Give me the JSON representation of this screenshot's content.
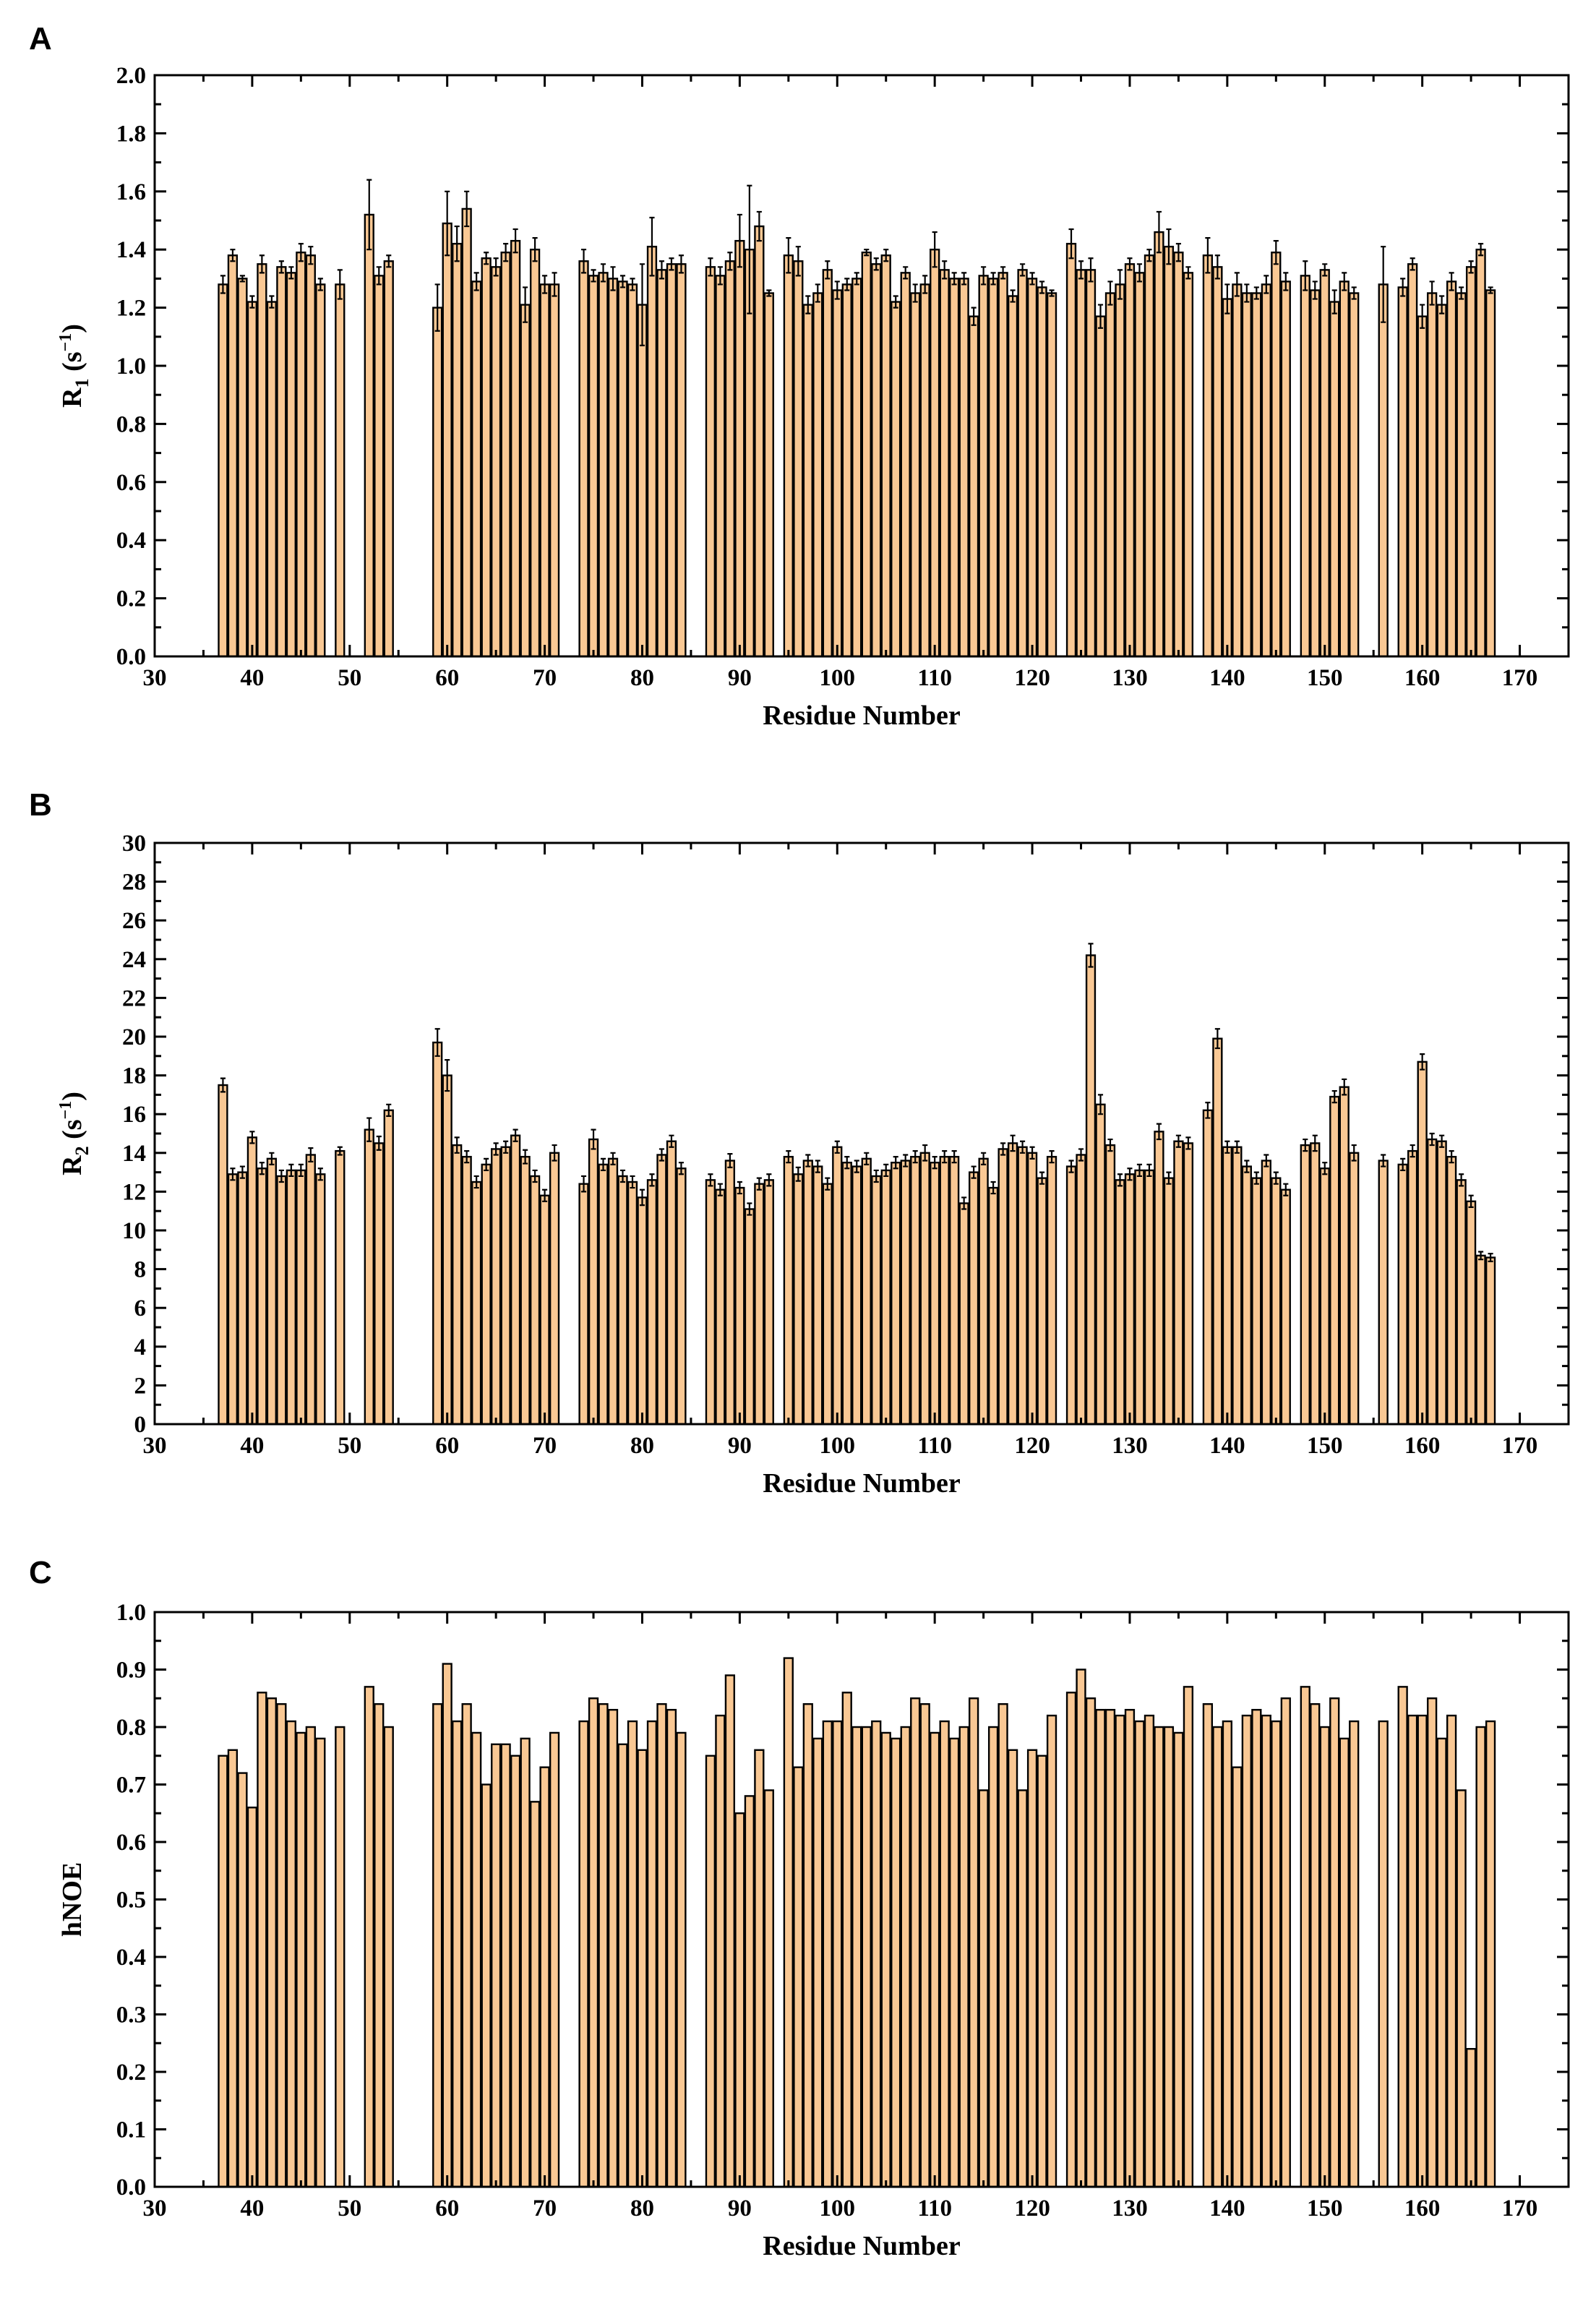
{
  "figure": {
    "panels": [
      "A",
      "B",
      "C"
    ]
  },
  "chart_data": [
    {
      "type": "bar",
      "panel_label": "A",
      "title": "",
      "xlabel": "Residue Number",
      "ylabel": "R1 (s⁻¹)",
      "ylabel_main": "R",
      "ylabel_sub": "1",
      "ylabel_tail": " (s",
      "ylabel_sup": "−1",
      "ylabel_close": ")",
      "xlim": [
        30,
        175
      ],
      "ylim": [
        0,
        2.0
      ],
      "xticks": [
        30,
        40,
        50,
        60,
        70,
        80,
        90,
        100,
        110,
        120,
        130,
        140,
        150,
        160,
        170
      ],
      "yticks": [
        "0.0",
        "0.2",
        "0.4",
        "0.6",
        "0.8",
        "1.0",
        "1.2",
        "1.4",
        "1.6",
        "1.8",
        "2.0"
      ],
      "residues": [
        37,
        38,
        39,
        40,
        41,
        42,
        43,
        44,
        45,
        46,
        47,
        49,
        52,
        53,
        54,
        59,
        60,
        61,
        62,
        63,
        64,
        65,
        66,
        67,
        68,
        69,
        70,
        71,
        74,
        75,
        76,
        77,
        78,
        79,
        80,
        81,
        82,
        83,
        84,
        87,
        88,
        89,
        90,
        91,
        92,
        93,
        95,
        96,
        97,
        98,
        99,
        100,
        101,
        102,
        103,
        104,
        105,
        106,
        107,
        108,
        109,
        110,
        111,
        112,
        113,
        114,
        115,
        116,
        117,
        118,
        119,
        120,
        121,
        122,
        124,
        125,
        126,
        127,
        128,
        129,
        130,
        131,
        132,
        133,
        134,
        135,
        136,
        138,
        139,
        140,
        141,
        142,
        143,
        144,
        145,
        146,
        148,
        149,
        150,
        151,
        152,
        153,
        156,
        158,
        159,
        160,
        161,
        162,
        163,
        164,
        165,
        166,
        167
      ],
      "values": [
        1.28,
        1.38,
        1.3,
        1.22,
        1.35,
        1.22,
        1.34,
        1.32,
        1.39,
        1.38,
        1.28,
        1.28,
        1.52,
        1.31,
        1.36,
        1.2,
        1.49,
        1.42,
        1.54,
        1.29,
        1.37,
        1.34,
        1.39,
        1.43,
        1.21,
        1.4,
        1.28,
        1.28,
        1.36,
        1.31,
        1.32,
        1.3,
        1.29,
        1.28,
        1.21,
        1.41,
        1.33,
        1.35,
        1.35,
        1.34,
        1.31,
        1.36,
        1.43,
        1.4,
        1.48,
        1.25,
        1.38,
        1.36,
        1.21,
        1.25,
        1.33,
        1.26,
        1.28,
        1.3,
        1.39,
        1.35,
        1.38,
        1.22,
        1.32,
        1.25,
        1.28,
        1.4,
        1.33,
        1.3,
        1.3,
        1.17,
        1.31,
        1.3,
        1.32,
        1.24,
        1.33,
        1.3,
        1.27,
        1.25,
        1.42,
        1.33,
        1.33,
        1.17,
        1.25,
        1.28,
        1.35,
        1.32,
        1.38,
        1.46,
        1.41,
        1.39,
        1.32,
        1.38,
        1.34,
        1.23,
        1.28,
        1.25,
        1.25,
        1.28,
        1.39,
        1.29,
        1.31,
        1.26,
        1.33,
        1.22,
        1.29,
        1.25,
        1.28,
        1.27,
        1.35,
        1.17,
        1.25,
        1.21,
        1.29,
        1.25,
        1.34,
        1.4,
        1.26
      ],
      "errors": [
        0.03,
        0.02,
        0.01,
        0.02,
        0.03,
        0.02,
        0.02,
        0.02,
        0.03,
        0.03,
        0.02,
        0.05,
        0.12,
        0.03,
        0.02,
        0.08,
        0.11,
        0.06,
        0.06,
        0.03,
        0.02,
        0.03,
        0.03,
        0.04,
        0.06,
        0.04,
        0.03,
        0.04,
        0.04,
        0.02,
        0.03,
        0.04,
        0.02,
        0.02,
        0.14,
        0.1,
        0.03,
        0.02,
        0.03,
        0.03,
        0.03,
        0.03,
        0.09,
        0.22,
        0.05,
        0.01,
        0.06,
        0.05,
        0.03,
        0.03,
        0.03,
        0.03,
        0.02,
        0.02,
        0.01,
        0.02,
        0.02,
        0.02,
        0.02,
        0.03,
        0.03,
        0.06,
        0.03,
        0.02,
        0.02,
        0.03,
        0.03,
        0.02,
        0.02,
        0.02,
        0.02,
        0.02,
        0.02,
        0.01,
        0.05,
        0.03,
        0.04,
        0.04,
        0.04,
        0.05,
        0.02,
        0.03,
        0.02,
        0.07,
        0.06,
        0.03,
        0.02,
        0.06,
        0.04,
        0.05,
        0.04,
        0.03,
        0.02,
        0.03,
        0.04,
        0.03,
        0.05,
        0.03,
        0.02,
        0.04,
        0.03,
        0.02,
        0.13,
        0.03,
        0.02,
        0.04,
        0.04,
        0.03,
        0.03,
        0.02,
        0.02,
        0.02,
        0.01
      ],
      "bar_color": "#f9c894",
      "edge_color": "#000000"
    },
    {
      "type": "bar",
      "panel_label": "B",
      "title": "",
      "xlabel": "Residue Number",
      "ylabel": "R2 (s⁻¹)",
      "ylabel_main": "R",
      "ylabel_sub": "2",
      "ylabel_tail": " (s",
      "ylabel_sup": "−1",
      "ylabel_close": ")",
      "xlim": [
        30,
        175
      ],
      "ylim": [
        0,
        30
      ],
      "xticks": [
        30,
        40,
        50,
        60,
        70,
        80,
        90,
        100,
        110,
        120,
        130,
        140,
        150,
        160,
        170
      ],
      "yticks": [
        "0",
        "2",
        "4",
        "6",
        "8",
        "10",
        "12",
        "14",
        "16",
        "18",
        "20",
        "22",
        "24",
        "26",
        "28",
        "30"
      ],
      "residues": [
        37,
        38,
        39,
        40,
        41,
        42,
        43,
        44,
        45,
        46,
        47,
        49,
        52,
        53,
        54,
        59,
        60,
        61,
        62,
        63,
        64,
        65,
        66,
        67,
        68,
        69,
        70,
        71,
        74,
        75,
        76,
        77,
        78,
        79,
        80,
        81,
        82,
        83,
        84,
        87,
        88,
        89,
        90,
        91,
        92,
        93,
        95,
        96,
        97,
        98,
        99,
        100,
        101,
        102,
        103,
        104,
        105,
        106,
        107,
        108,
        109,
        110,
        111,
        112,
        113,
        114,
        115,
        116,
        117,
        118,
        119,
        120,
        121,
        122,
        124,
        125,
        126,
        127,
        128,
        129,
        130,
        131,
        132,
        133,
        134,
        135,
        136,
        138,
        139,
        140,
        141,
        142,
        143,
        144,
        145,
        146,
        148,
        149,
        150,
        151,
        152,
        153,
        156,
        158,
        159,
        160,
        161,
        162,
        163,
        164,
        165,
        166,
        167
      ],
      "values": [
        17.5,
        12.9,
        13.0,
        14.8,
        13.2,
        13.7,
        12.8,
        13.1,
        13.1,
        13.9,
        12.9,
        14.1,
        15.2,
        14.5,
        16.2,
        19.7,
        18.0,
        14.4,
        13.8,
        12.5,
        13.4,
        14.2,
        14.3,
        14.9,
        13.8,
        12.8,
        11.8,
        14.0,
        12.4,
        14.7,
        13.4,
        13.7,
        12.8,
        12.5,
        11.7,
        12.6,
        13.9,
        14.6,
        13.2,
        12.6,
        12.1,
        13.6,
        12.2,
        11.1,
        12.4,
        12.6,
        13.8,
        12.9,
        13.6,
        13.3,
        12.4,
        14.3,
        13.5,
        13.3,
        13.7,
        12.8,
        13.1,
        13.5,
        13.6,
        13.8,
        14.0,
        13.5,
        13.8,
        13.8,
        11.4,
        13.0,
        13.7,
        12.2,
        14.2,
        14.5,
        14.3,
        14.0,
        12.7,
        13.8,
        13.3,
        13.9,
        24.2,
        16.5,
        14.4,
        12.6,
        12.9,
        13.1,
        13.1,
        15.1,
        12.7,
        14.6,
        14.5,
        16.2,
        19.9,
        14.3,
        14.3,
        13.3,
        12.7,
        13.6,
        12.7,
        12.1,
        14.4,
        14.5,
        13.2,
        16.9,
        17.4,
        14.0,
        13.6,
        13.4,
        14.1,
        18.7,
        14.7,
        14.6,
        13.8,
        12.6,
        11.5,
        8.7,
        8.6
      ],
      "errors": [
        0.35,
        0.3,
        0.3,
        0.3,
        0.3,
        0.3,
        0.3,
        0.3,
        0.3,
        0.35,
        0.3,
        0.2,
        0.6,
        0.35,
        0.3,
        0.7,
        0.8,
        0.4,
        0.3,
        0.3,
        0.3,
        0.3,
        0.3,
        0.3,
        0.35,
        0.3,
        0.3,
        0.4,
        0.4,
        0.5,
        0.3,
        0.3,
        0.3,
        0.3,
        0.4,
        0.3,
        0.3,
        0.3,
        0.3,
        0.3,
        0.3,
        0.35,
        0.3,
        0.3,
        0.3,
        0.3,
        0.3,
        0.35,
        0.3,
        0.3,
        0.3,
        0.3,
        0.3,
        0.3,
        0.3,
        0.3,
        0.3,
        0.3,
        0.3,
        0.3,
        0.4,
        0.3,
        0.3,
        0.3,
        0.3,
        0.3,
        0.3,
        0.3,
        0.3,
        0.4,
        0.3,
        0.3,
        0.3,
        0.3,
        0.3,
        0.3,
        0.6,
        0.5,
        0.3,
        0.3,
        0.3,
        0.3,
        0.3,
        0.4,
        0.3,
        0.3,
        0.3,
        0.4,
        0.5,
        0.3,
        0.3,
        0.3,
        0.3,
        0.3,
        0.3,
        0.3,
        0.3,
        0.4,
        0.3,
        0.3,
        0.4,
        0.4,
        0.3,
        0.3,
        0.3,
        0.4,
        0.3,
        0.3,
        0.3,
        0.3,
        0.3,
        0.2,
        0.2
      ],
      "bar_color": "#f9c894",
      "edge_color": "#000000"
    },
    {
      "type": "bar",
      "panel_label": "C",
      "title": "",
      "xlabel": "Residue Number",
      "ylabel": "hNOE",
      "ylabel_main": "hNOE",
      "ylabel_sub": "",
      "ylabel_tail": "",
      "ylabel_sup": "",
      "ylabel_close": "",
      "xlim": [
        30,
        175
      ],
      "ylim": [
        0,
        1.0
      ],
      "xticks": [
        30,
        40,
        50,
        60,
        70,
        80,
        90,
        100,
        110,
        120,
        130,
        140,
        150,
        160,
        170
      ],
      "yticks": [
        "0.0",
        "0.1",
        "0.2",
        "0.3",
        "0.4",
        "0.5",
        "0.6",
        "0.7",
        "0.8",
        "0.9",
        "1.0"
      ],
      "residues": [
        37,
        38,
        39,
        40,
        41,
        42,
        43,
        44,
        45,
        46,
        47,
        49,
        52,
        53,
        54,
        59,
        60,
        61,
        62,
        63,
        64,
        65,
        66,
        67,
        68,
        69,
        70,
        71,
        74,
        75,
        76,
        77,
        78,
        79,
        80,
        81,
        82,
        83,
        84,
        87,
        88,
        89,
        90,
        91,
        92,
        93,
        95,
        96,
        97,
        98,
        99,
        100,
        101,
        102,
        103,
        104,
        105,
        106,
        107,
        108,
        109,
        110,
        111,
        112,
        113,
        114,
        115,
        116,
        117,
        118,
        119,
        120,
        121,
        122,
        124,
        125,
        126,
        127,
        128,
        129,
        130,
        131,
        132,
        133,
        134,
        135,
        136,
        138,
        139,
        140,
        141,
        142,
        143,
        144,
        145,
        146,
        148,
        149,
        150,
        151,
        152,
        153,
        156,
        158,
        159,
        160,
        161,
        162,
        163,
        164,
        165,
        166,
        167
      ],
      "values": [
        0.75,
        0.76,
        0.72,
        0.66,
        0.86,
        0.85,
        0.84,
        0.81,
        0.79,
        0.8,
        0.78,
        0.8,
        0.87,
        0.84,
        0.8,
        0.84,
        0.91,
        0.81,
        0.84,
        0.79,
        0.7,
        0.77,
        0.77,
        0.75,
        0.78,
        0.67,
        0.73,
        0.79,
        0.81,
        0.85,
        0.84,
        0.83,
        0.77,
        0.81,
        0.76,
        0.81,
        0.84,
        0.83,
        0.79,
        0.75,
        0.82,
        0.89,
        0.65,
        0.68,
        0.76,
        0.69,
        0.92,
        0.73,
        0.84,
        0.78,
        0.81,
        0.81,
        0.86,
        0.8,
        0.8,
        0.81,
        0.79,
        0.78,
        0.8,
        0.85,
        0.84,
        0.79,
        0.81,
        0.78,
        0.8,
        0.85,
        0.69,
        0.8,
        0.84,
        0.76,
        0.69,
        0.76,
        0.75,
        0.82,
        0.86,
        0.9,
        0.85,
        0.83,
        0.83,
        0.82,
        0.83,
        0.81,
        0.82,
        0.8,
        0.8,
        0.79,
        0.87,
        0.84,
        0.8,
        0.81,
        0.73,
        0.82,
        0.83,
        0.82,
        0.81,
        0.85,
        0.87,
        0.84,
        0.8,
        0.85,
        0.78,
        0.81,
        0.81,
        0.87,
        0.82,
        0.82,
        0.85,
        0.78,
        0.82,
        0.69,
        0.24,
        0.8,
        0.81
      ],
      "bar_color": "#f9c894",
      "edge_color": "#000000"
    }
  ]
}
